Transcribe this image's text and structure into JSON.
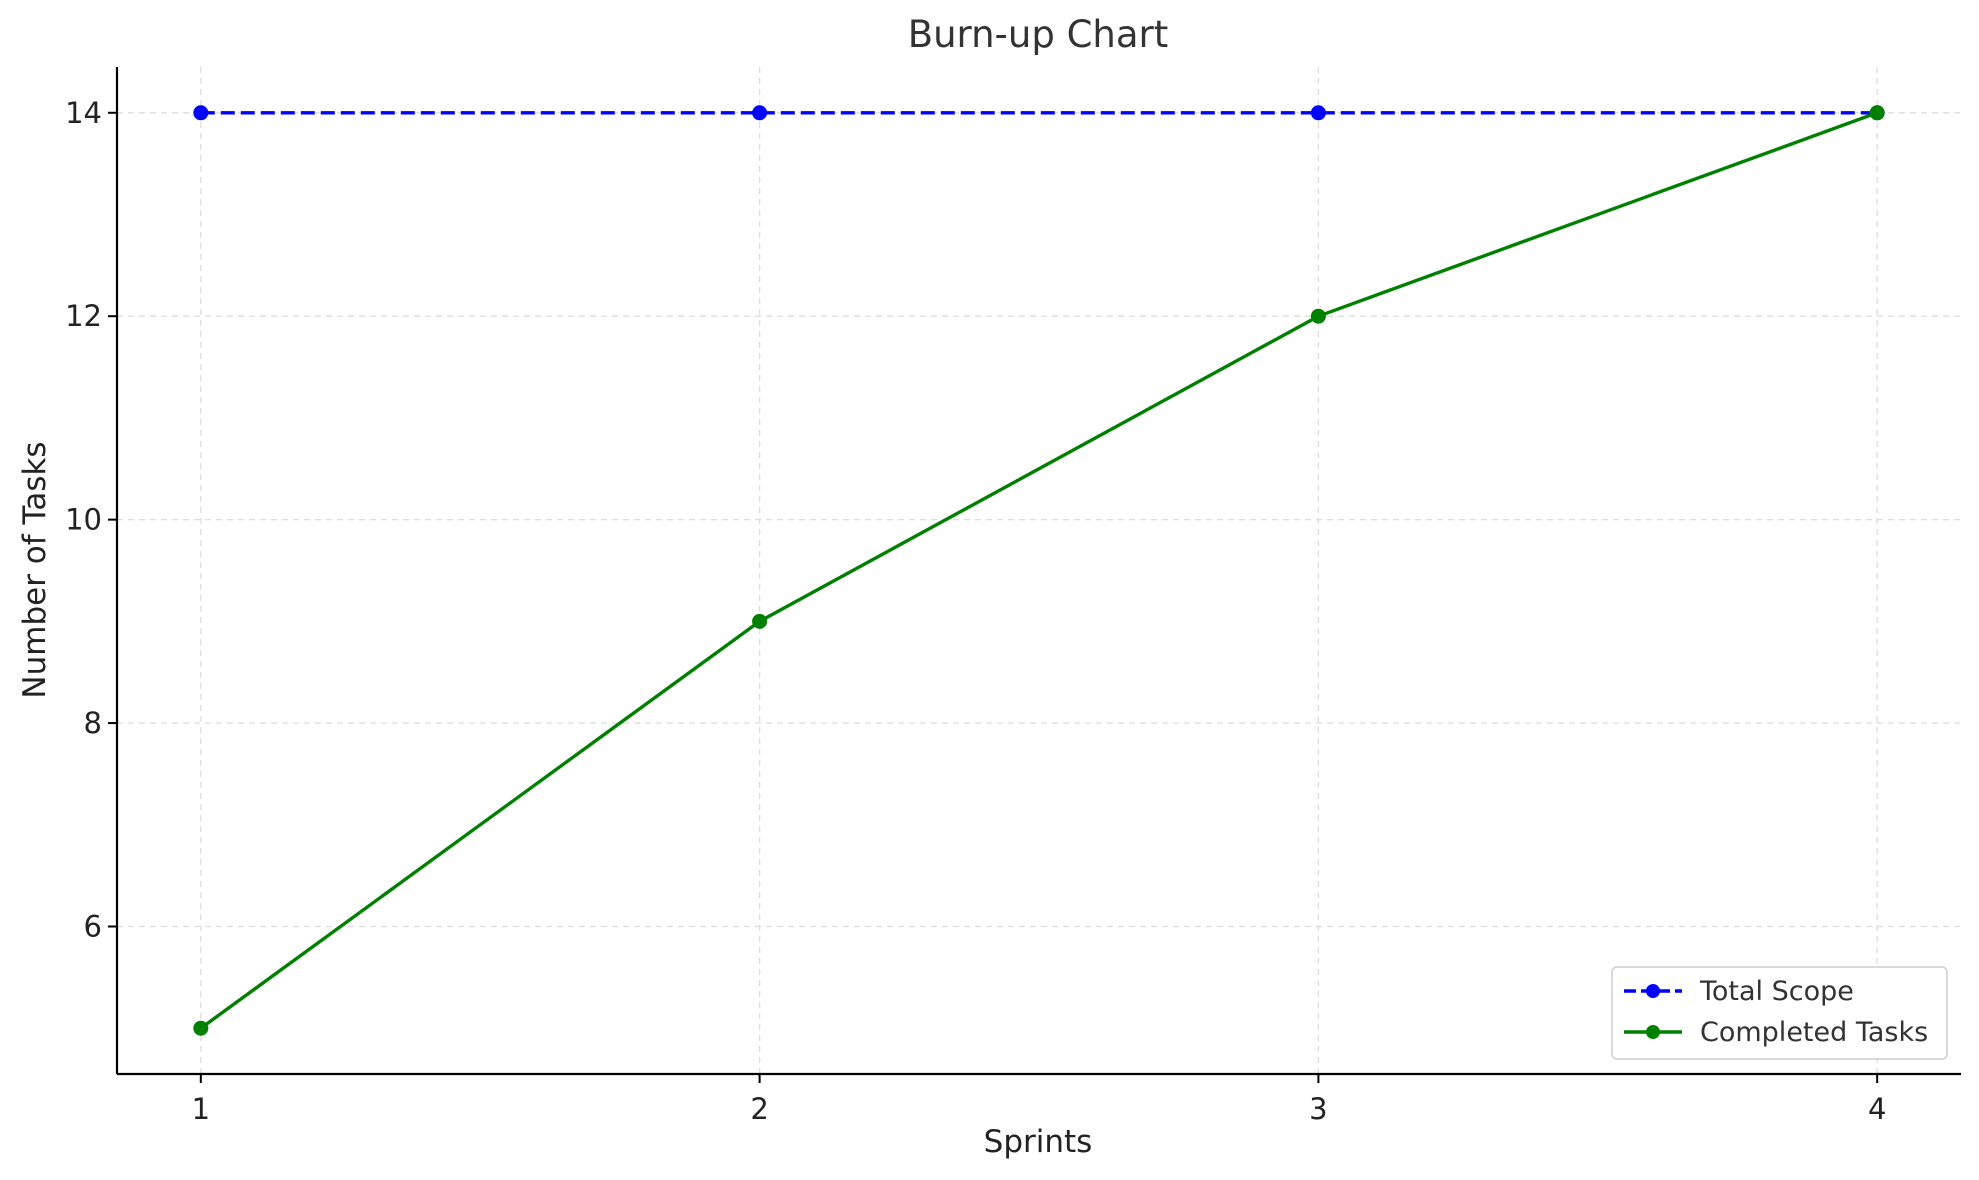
{
  "chart_data": {
    "type": "line",
    "title": "Burn-up Chart",
    "xlabel": "Sprints",
    "ylabel": "Number of Tasks",
    "categories": [
      "1",
      "2",
      "3",
      "4"
    ],
    "x": [
      1,
      2,
      3,
      4
    ],
    "xlim": [
      0.85,
      4.15
    ],
    "ylim": [
      4.55,
      14.45
    ],
    "yticks": [
      6,
      8,
      10,
      12,
      14
    ],
    "grid": true,
    "legend_position": "bottom-right",
    "series": [
      {
        "name": "Total Scope",
        "values": [
          14,
          14,
          14,
          14
        ],
        "color": "#0000ff",
        "line_style": "dashed",
        "marker": "circle"
      },
      {
        "name": "Completed Tasks",
        "values": [
          5,
          9,
          12,
          14
        ],
        "color": "#008000",
        "line_style": "solid",
        "marker": "circle"
      }
    ]
  }
}
